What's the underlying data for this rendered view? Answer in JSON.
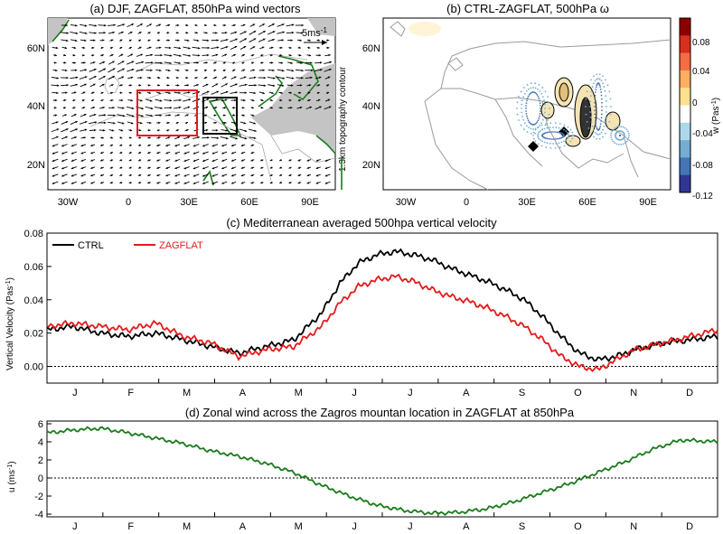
{
  "panel_a": {
    "title": "(a) DJF, ZAGFLAT, 850hPa wind vectors",
    "ref_label": "5ms",
    "ref_sup": "-1",
    "side_label": "1.3km topography contour",
    "lat_ticks": [
      "60N",
      "40N",
      "20N"
    ],
    "lon_ticks": [
      "30W",
      "0",
      "30E",
      "60E",
      "90E"
    ]
  },
  "panel_b": {
    "title": "(b) CTRL-ZAGFLAT, 500hPa ω",
    "lat_ticks": [
      "60N",
      "40N",
      "20N"
    ],
    "lon_ticks": [
      "30W",
      "0",
      "30E",
      "60E",
      "90E"
    ],
    "colorbar_label": "w (Pas",
    "colorbar_label_sup": "-1",
    "colorbar_ticks": [
      "0.08",
      "0.04",
      "0",
      "-0.04",
      "-0.08",
      "-0.12"
    ],
    "colors": [
      "#8b0000",
      "#d7301f",
      "#f46d43",
      "#fdae61",
      "#fee090",
      "#ffffff",
      "#abd9e9",
      "#74add1",
      "#4575b4",
      "#313695"
    ]
  },
  "panel_c": {
    "title": "(c) Mediterranean averaged 500hpa vertical velocity",
    "ylabel": "Vertical Velocity (Pas",
    "ylabel_sup": "-1",
    "legend": [
      {
        "name": "CTRL",
        "color": "#000000"
      },
      {
        "name": "ZAGFLAT",
        "color": "#e41a1c"
      }
    ],
    "months": [
      "J",
      "F",
      "M",
      "A",
      "M",
      "J",
      "J",
      "A",
      "S",
      "O",
      "N",
      "D"
    ]
  },
  "panel_d": {
    "title": "(d) Zonal wind across the Zagros mountan location in ZAGFLAT at 850hPa",
    "ylabel": "u (ms",
    "ylabel_sup": "-1",
    "months": [
      "J",
      "F",
      "M",
      "A",
      "M",
      "J",
      "J",
      "A",
      "S",
      "O",
      "N",
      "D"
    ]
  },
  "chart_data": [
    {
      "type": "line",
      "title": "(c) Mediterranean averaged 500hpa vertical velocity",
      "xlabel": "",
      "ylabel": "Vertical Velocity (Pas-1)",
      "x_unit": "day of year",
      "xlim": [
        1,
        365
      ],
      "ylim": [
        -0.01,
        0.08
      ],
      "yticks": [
        0.0,
        0.02,
        0.04,
        0.06,
        0.08
      ],
      "categories": [
        "J",
        "F",
        "M",
        "A",
        "M",
        "J",
        "J",
        "A",
        "S",
        "O",
        "N",
        "D"
      ],
      "x": [
        1,
        15,
        30,
        45,
        60,
        75,
        90,
        105,
        120,
        135,
        150,
        160,
        170,
        180,
        190,
        200,
        210,
        220,
        230,
        240,
        250,
        260,
        270,
        280,
        290,
        300,
        310,
        320,
        335,
        350,
        365
      ],
      "series": [
        {
          "name": "CTRL",
          "color": "#000000",
          "values": [
            0.022,
            0.024,
            0.02,
            0.018,
            0.02,
            0.016,
            0.012,
            0.008,
            0.012,
            0.016,
            0.032,
            0.05,
            0.062,
            0.067,
            0.069,
            0.067,
            0.064,
            0.059,
            0.055,
            0.051,
            0.046,
            0.04,
            0.03,
            0.018,
            0.008,
            0.004,
            0.006,
            0.01,
            0.014,
            0.016,
            0.018
          ]
        },
        {
          "name": "ZAGFLAT",
          "color": "#e41a1c",
          "values": [
            0.024,
            0.026,
            0.024,
            0.022,
            0.026,
            0.018,
            0.014,
            0.006,
            0.01,
            0.012,
            0.024,
            0.038,
            0.048,
            0.052,
            0.054,
            0.051,
            0.046,
            0.042,
            0.039,
            0.035,
            0.03,
            0.024,
            0.016,
            0.006,
            0.0,
            -0.002,
            0.004,
            0.01,
            0.014,
            0.018,
            0.022
          ]
        }
      ]
    },
    {
      "type": "line",
      "title": "(d) Zonal wind across the Zagros mountan location in ZAGFLAT at 850hPa",
      "xlabel": "",
      "ylabel": "u (ms-1)",
      "x_unit": "day of year",
      "xlim": [
        1,
        365
      ],
      "ylim": [
        -4.3,
        6.3
      ],
      "yticks": [
        -4,
        -2,
        0,
        2,
        4,
        6
      ],
      "categories": [
        "J",
        "F",
        "M",
        "A",
        "M",
        "J",
        "J",
        "A",
        "S",
        "O",
        "N",
        "D"
      ],
      "x": [
        1,
        15,
        30,
        45,
        60,
        75,
        90,
        105,
        120,
        135,
        150,
        165,
        180,
        195,
        210,
        225,
        240,
        255,
        270,
        285,
        300,
        315,
        330,
        345,
        365
      ],
      "series": [
        {
          "name": "",
          "color": "#1a7a1a",
          "values": [
            5.0,
            5.3,
            5.5,
            5.0,
            4.4,
            3.8,
            3.0,
            2.4,
            1.6,
            0.6,
            -0.8,
            -2.0,
            -3.0,
            -3.6,
            -3.9,
            -3.8,
            -3.4,
            -2.6,
            -1.6,
            -0.6,
            0.6,
            1.8,
            3.2,
            4.2,
            4.0
          ]
        }
      ]
    }
  ]
}
